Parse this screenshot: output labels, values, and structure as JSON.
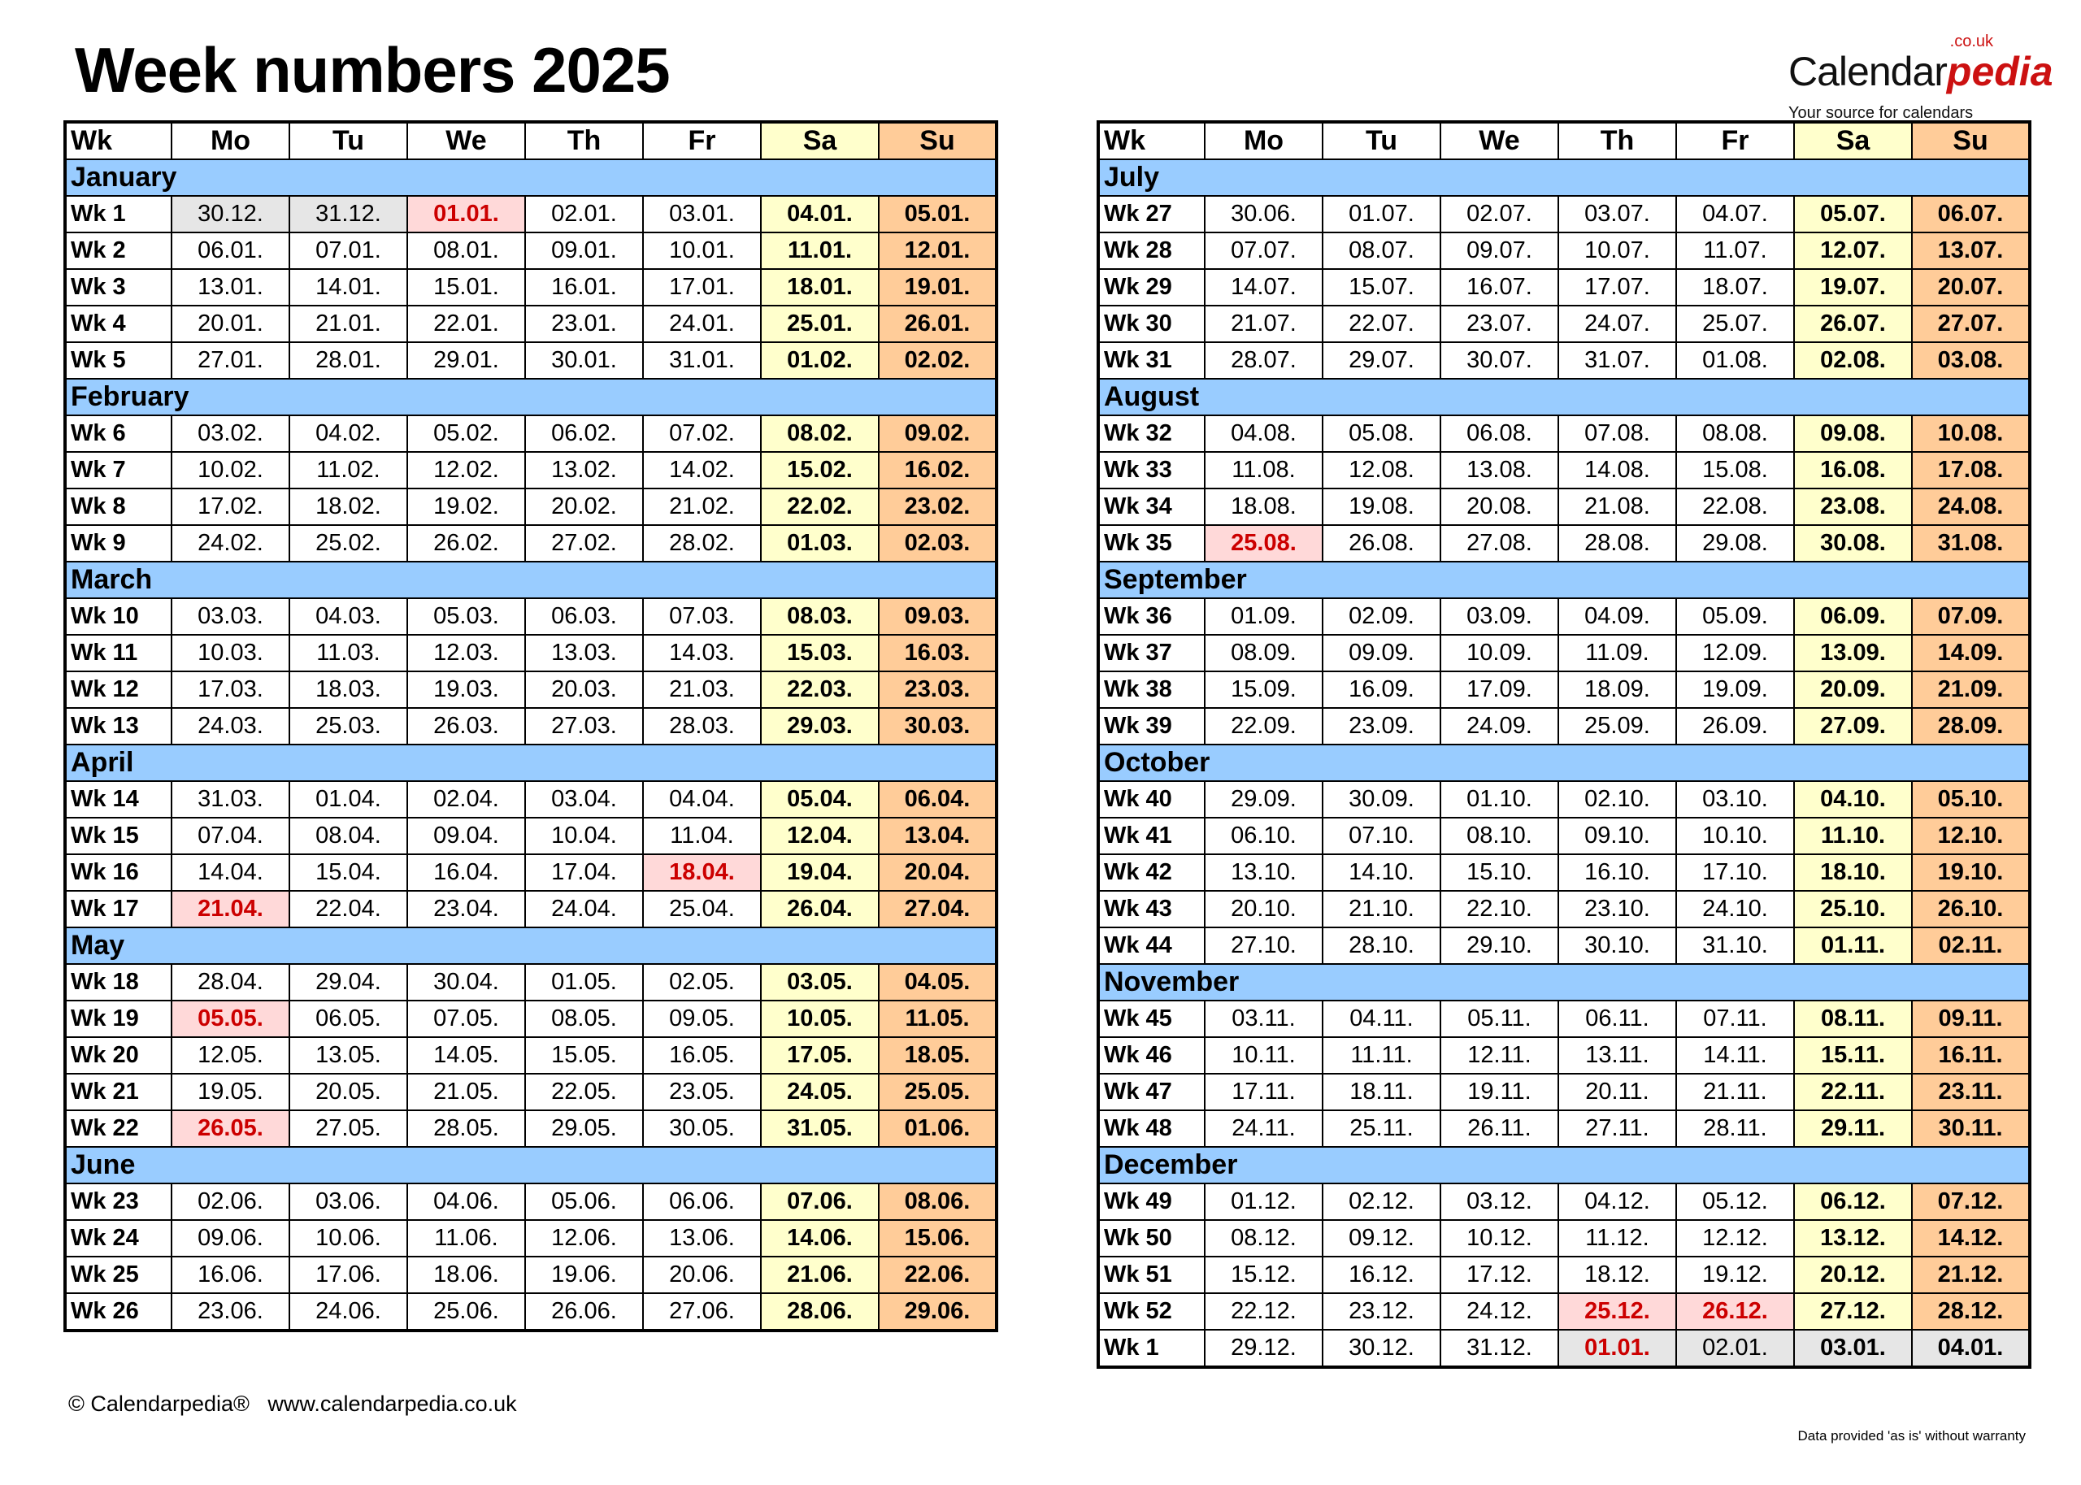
{
  "title": "Week numbers 2025",
  "logo": {
    "main": "Calendar",
    "accent": "pedia",
    "suffix": ".co.uk",
    "tagline": "Your source for calendars"
  },
  "headers": [
    "Wk",
    "Mo",
    "Tu",
    "We",
    "Th",
    "Fr",
    "Sa",
    "Su"
  ],
  "colors": {
    "month_band": "#99ccff",
    "saturday": "#ffffcc",
    "sunday": "#ffcc99",
    "holiday_bg": "#ffd9d9",
    "holiday_text": "#cc0000",
    "outside_year": "#e6e6e6"
  },
  "left": [
    {
      "month": "January",
      "weeks": [
        {
          "wk": "Wk 1",
          "d": [
            "30.12.",
            "31.12.",
            "01.01.",
            "02.01.",
            "03.01.",
            "04.01.",
            "05.01."
          ],
          "h": [
            2
          ],
          "o": [
            0,
            1
          ]
        },
        {
          "wk": "Wk 2",
          "d": [
            "06.01.",
            "07.01.",
            "08.01.",
            "09.01.",
            "10.01.",
            "11.01.",
            "12.01."
          ]
        },
        {
          "wk": "Wk 3",
          "d": [
            "13.01.",
            "14.01.",
            "15.01.",
            "16.01.",
            "17.01.",
            "18.01.",
            "19.01."
          ]
        },
        {
          "wk": "Wk 4",
          "d": [
            "20.01.",
            "21.01.",
            "22.01.",
            "23.01.",
            "24.01.",
            "25.01.",
            "26.01."
          ]
        },
        {
          "wk": "Wk 5",
          "d": [
            "27.01.",
            "28.01.",
            "29.01.",
            "30.01.",
            "31.01.",
            "01.02.",
            "02.02."
          ]
        }
      ]
    },
    {
      "month": "February",
      "weeks": [
        {
          "wk": "Wk 6",
          "d": [
            "03.02.",
            "04.02.",
            "05.02.",
            "06.02.",
            "07.02.",
            "08.02.",
            "09.02."
          ]
        },
        {
          "wk": "Wk 7",
          "d": [
            "10.02.",
            "11.02.",
            "12.02.",
            "13.02.",
            "14.02.",
            "15.02.",
            "16.02."
          ]
        },
        {
          "wk": "Wk 8",
          "d": [
            "17.02.",
            "18.02.",
            "19.02.",
            "20.02.",
            "21.02.",
            "22.02.",
            "23.02."
          ]
        },
        {
          "wk": "Wk 9",
          "d": [
            "24.02.",
            "25.02.",
            "26.02.",
            "27.02.",
            "28.02.",
            "01.03.",
            "02.03."
          ]
        }
      ]
    },
    {
      "month": "March",
      "weeks": [
        {
          "wk": "Wk 10",
          "d": [
            "03.03.",
            "04.03.",
            "05.03.",
            "06.03.",
            "07.03.",
            "08.03.",
            "09.03."
          ]
        },
        {
          "wk": "Wk 11",
          "d": [
            "10.03.",
            "11.03.",
            "12.03.",
            "13.03.",
            "14.03.",
            "15.03.",
            "16.03."
          ]
        },
        {
          "wk": "Wk 12",
          "d": [
            "17.03.",
            "18.03.",
            "19.03.",
            "20.03.",
            "21.03.",
            "22.03.",
            "23.03."
          ]
        },
        {
          "wk": "Wk 13",
          "d": [
            "24.03.",
            "25.03.",
            "26.03.",
            "27.03.",
            "28.03.",
            "29.03.",
            "30.03."
          ]
        }
      ]
    },
    {
      "month": "April",
      "weeks": [
        {
          "wk": "Wk 14",
          "d": [
            "31.03.",
            "01.04.",
            "02.04.",
            "03.04.",
            "04.04.",
            "05.04.",
            "06.04."
          ]
        },
        {
          "wk": "Wk 15",
          "d": [
            "07.04.",
            "08.04.",
            "09.04.",
            "10.04.",
            "11.04.",
            "12.04.",
            "13.04."
          ]
        },
        {
          "wk": "Wk 16",
          "d": [
            "14.04.",
            "15.04.",
            "16.04.",
            "17.04.",
            "18.04.",
            "19.04.",
            "20.04."
          ],
          "h": [
            4
          ]
        },
        {
          "wk": "Wk 17",
          "d": [
            "21.04.",
            "22.04.",
            "23.04.",
            "24.04.",
            "25.04.",
            "26.04.",
            "27.04."
          ],
          "h": [
            0
          ]
        }
      ]
    },
    {
      "month": "May",
      "weeks": [
        {
          "wk": "Wk 18",
          "d": [
            "28.04.",
            "29.04.",
            "30.04.",
            "01.05.",
            "02.05.",
            "03.05.",
            "04.05."
          ]
        },
        {
          "wk": "Wk 19",
          "d": [
            "05.05.",
            "06.05.",
            "07.05.",
            "08.05.",
            "09.05.",
            "10.05.",
            "11.05."
          ],
          "h": [
            0
          ]
        },
        {
          "wk": "Wk 20",
          "d": [
            "12.05.",
            "13.05.",
            "14.05.",
            "15.05.",
            "16.05.",
            "17.05.",
            "18.05."
          ]
        },
        {
          "wk": "Wk 21",
          "d": [
            "19.05.",
            "20.05.",
            "21.05.",
            "22.05.",
            "23.05.",
            "24.05.",
            "25.05."
          ]
        },
        {
          "wk": "Wk 22",
          "d": [
            "26.05.",
            "27.05.",
            "28.05.",
            "29.05.",
            "30.05.",
            "31.05.",
            "01.06."
          ],
          "h": [
            0
          ]
        }
      ]
    },
    {
      "month": "June",
      "weeks": [
        {
          "wk": "Wk 23",
          "d": [
            "02.06.",
            "03.06.",
            "04.06.",
            "05.06.",
            "06.06.",
            "07.06.",
            "08.06."
          ]
        },
        {
          "wk": "Wk 24",
          "d": [
            "09.06.",
            "10.06.",
            "11.06.",
            "12.06.",
            "13.06.",
            "14.06.",
            "15.06."
          ]
        },
        {
          "wk": "Wk 25",
          "d": [
            "16.06.",
            "17.06.",
            "18.06.",
            "19.06.",
            "20.06.",
            "21.06.",
            "22.06."
          ]
        },
        {
          "wk": "Wk 26",
          "d": [
            "23.06.",
            "24.06.",
            "25.06.",
            "26.06.",
            "27.06.",
            "28.06.",
            "29.06."
          ]
        }
      ]
    }
  ],
  "right": [
    {
      "month": "July",
      "weeks": [
        {
          "wk": "Wk 27",
          "d": [
            "30.06.",
            "01.07.",
            "02.07.",
            "03.07.",
            "04.07.",
            "05.07.",
            "06.07."
          ]
        },
        {
          "wk": "Wk 28",
          "d": [
            "07.07.",
            "08.07.",
            "09.07.",
            "10.07.",
            "11.07.",
            "12.07.",
            "13.07."
          ]
        },
        {
          "wk": "Wk 29",
          "d": [
            "14.07.",
            "15.07.",
            "16.07.",
            "17.07.",
            "18.07.",
            "19.07.",
            "20.07."
          ]
        },
        {
          "wk": "Wk 30",
          "d": [
            "21.07.",
            "22.07.",
            "23.07.",
            "24.07.",
            "25.07.",
            "26.07.",
            "27.07."
          ]
        },
        {
          "wk": "Wk 31",
          "d": [
            "28.07.",
            "29.07.",
            "30.07.",
            "31.07.",
            "01.08.",
            "02.08.",
            "03.08."
          ]
        }
      ]
    },
    {
      "month": "August",
      "weeks": [
        {
          "wk": "Wk 32",
          "d": [
            "04.08.",
            "05.08.",
            "06.08.",
            "07.08.",
            "08.08.",
            "09.08.",
            "10.08."
          ]
        },
        {
          "wk": "Wk 33",
          "d": [
            "11.08.",
            "12.08.",
            "13.08.",
            "14.08.",
            "15.08.",
            "16.08.",
            "17.08."
          ]
        },
        {
          "wk": "Wk 34",
          "d": [
            "18.08.",
            "19.08.",
            "20.08.",
            "21.08.",
            "22.08.",
            "23.08.",
            "24.08."
          ]
        },
        {
          "wk": "Wk 35",
          "d": [
            "25.08.",
            "26.08.",
            "27.08.",
            "28.08.",
            "29.08.",
            "30.08.",
            "31.08."
          ],
          "h": [
            0
          ]
        }
      ]
    },
    {
      "month": "September",
      "weeks": [
        {
          "wk": "Wk 36",
          "d": [
            "01.09.",
            "02.09.",
            "03.09.",
            "04.09.",
            "05.09.",
            "06.09.",
            "07.09."
          ]
        },
        {
          "wk": "Wk 37",
          "d": [
            "08.09.",
            "09.09.",
            "10.09.",
            "11.09.",
            "12.09.",
            "13.09.",
            "14.09."
          ]
        },
        {
          "wk": "Wk 38",
          "d": [
            "15.09.",
            "16.09.",
            "17.09.",
            "18.09.",
            "19.09.",
            "20.09.",
            "21.09."
          ]
        },
        {
          "wk": "Wk 39",
          "d": [
            "22.09.",
            "23.09.",
            "24.09.",
            "25.09.",
            "26.09.",
            "27.09.",
            "28.09."
          ]
        }
      ]
    },
    {
      "month": "October",
      "weeks": [
        {
          "wk": "Wk 40",
          "d": [
            "29.09.",
            "30.09.",
            "01.10.",
            "02.10.",
            "03.10.",
            "04.10.",
            "05.10."
          ]
        },
        {
          "wk": "Wk 41",
          "d": [
            "06.10.",
            "07.10.",
            "08.10.",
            "09.10.",
            "10.10.",
            "11.10.",
            "12.10."
          ]
        },
        {
          "wk": "Wk 42",
          "d": [
            "13.10.",
            "14.10.",
            "15.10.",
            "16.10.",
            "17.10.",
            "18.10.",
            "19.10."
          ]
        },
        {
          "wk": "Wk 43",
          "d": [
            "20.10.",
            "21.10.",
            "22.10.",
            "23.10.",
            "24.10.",
            "25.10.",
            "26.10."
          ]
        },
        {
          "wk": "Wk 44",
          "d": [
            "27.10.",
            "28.10.",
            "29.10.",
            "30.10.",
            "31.10.",
            "01.11.",
            "02.11."
          ]
        }
      ]
    },
    {
      "month": "November",
      "weeks": [
        {
          "wk": "Wk 45",
          "d": [
            "03.11.",
            "04.11.",
            "05.11.",
            "06.11.",
            "07.11.",
            "08.11.",
            "09.11."
          ]
        },
        {
          "wk": "Wk 46",
          "d": [
            "10.11.",
            "11.11.",
            "12.11.",
            "13.11.",
            "14.11.",
            "15.11.",
            "16.11."
          ]
        },
        {
          "wk": "Wk 47",
          "d": [
            "17.11.",
            "18.11.",
            "19.11.",
            "20.11.",
            "21.11.",
            "22.11.",
            "23.11."
          ]
        },
        {
          "wk": "Wk 48",
          "d": [
            "24.11.",
            "25.11.",
            "26.11.",
            "27.11.",
            "28.11.",
            "29.11.",
            "30.11."
          ]
        }
      ]
    },
    {
      "month": "December",
      "weeks": [
        {
          "wk": "Wk 49",
          "d": [
            "01.12.",
            "02.12.",
            "03.12.",
            "04.12.",
            "05.12.",
            "06.12.",
            "07.12."
          ]
        },
        {
          "wk": "Wk 50",
          "d": [
            "08.12.",
            "09.12.",
            "10.12.",
            "11.12.",
            "12.12.",
            "13.12.",
            "14.12."
          ]
        },
        {
          "wk": "Wk 51",
          "d": [
            "15.12.",
            "16.12.",
            "17.12.",
            "18.12.",
            "19.12.",
            "20.12.",
            "21.12."
          ]
        },
        {
          "wk": "Wk 52",
          "d": [
            "22.12.",
            "23.12.",
            "24.12.",
            "25.12.",
            "26.12.",
            "27.12.",
            "28.12."
          ],
          "h": [
            3,
            4
          ]
        },
        {
          "wk": "Wk 1",
          "d": [
            "29.12.",
            "30.12.",
            "31.12.",
            "01.01.",
            "02.01.",
            "03.01.",
            "04.01."
          ],
          "h": [
            3
          ],
          "o": [
            3,
            4,
            5,
            6
          ]
        }
      ]
    }
  ],
  "footer": {
    "copyright": "© Calendarpedia®   www.calendarpedia.co.uk",
    "disclaimer": "Data provided 'as is' without warranty"
  }
}
